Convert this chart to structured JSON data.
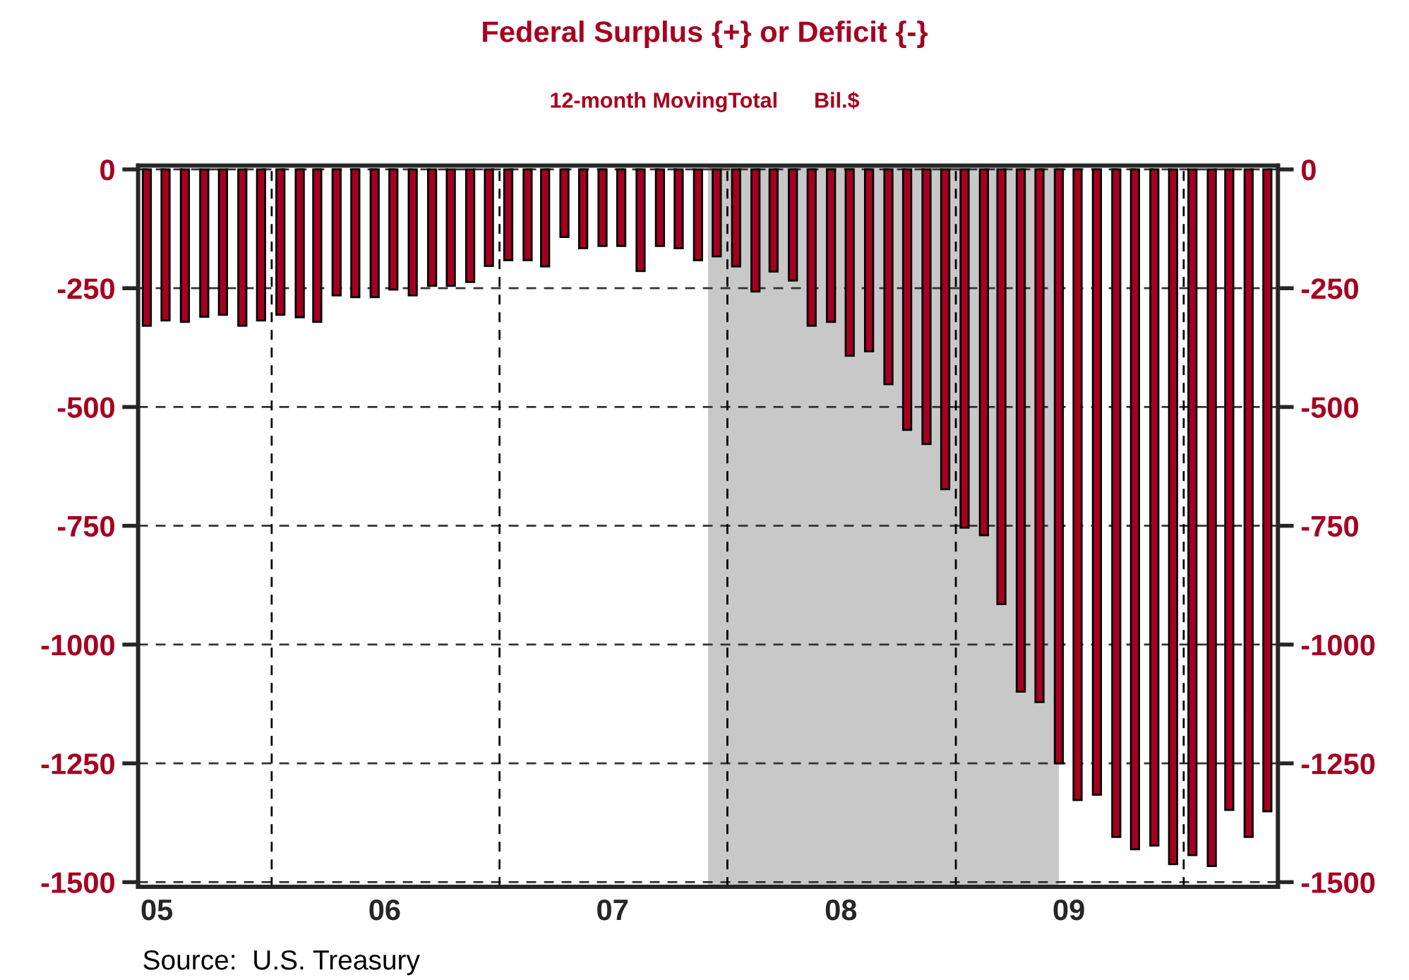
{
  "chart_data": {
    "type": "bar",
    "title": "Federal Surplus {+} or Deficit {-}",
    "subtitle": "12-month MovingTotal      Bil.$",
    "annotations": [
      "Source:  U.S. Treasury"
    ],
    "x": [
      "2005-06-15",
      "2005-07-15",
      "2005-08-15",
      "2005-09-15",
      "2005-10-15",
      "2005-11-15",
      "2005-12-15",
      "2006-01-15",
      "2006-02-15",
      "2006-03-15",
      "2006-04-15",
      "2006-05-15",
      "2006-06-15",
      "2006-07-15",
      "2006-08-15",
      "2006-09-15",
      "2006-10-15",
      "2006-11-15",
      "2006-12-15",
      "2007-01-15",
      "2007-02-15",
      "2007-03-15",
      "2007-04-15",
      "2007-05-15",
      "2007-06-15",
      "2007-07-15",
      "2007-08-15",
      "2007-09-15",
      "2007-10-15",
      "2007-11-15",
      "2007-12-15",
      "2008-01-15",
      "2008-02-15",
      "2008-03-15",
      "2008-04-15",
      "2008-05-15",
      "2008-06-15",
      "2008-07-15",
      "2008-08-15",
      "2008-09-15",
      "2008-10-15",
      "2008-11-15",
      "2008-12-15",
      "2009-01-15",
      "2009-02-15",
      "2009-03-15",
      "2009-04-15",
      "2009-05-15",
      "2009-06-15",
      "2009-07-15",
      "2009-08-15",
      "2009-09-15",
      "2009-10-15",
      "2009-11-15",
      "2009-12-15",
      "2010-01-15",
      "2010-02-15",
      "2010-03-15",
      "2010-04-15",
      "2010-05-15"
    ],
    "values": [
      -329,
      -318,
      -321,
      -310,
      -306,
      -329,
      -318,
      -306,
      -311,
      -321,
      -265,
      -269,
      -269,
      -253,
      -265,
      -245,
      -245,
      -237,
      -203,
      -191,
      -191,
      -204,
      -142,
      -166,
      -161,
      -161,
      -214,
      -161,
      -166,
      -191,
      -183,
      -204,
      -257,
      -215,
      -234,
      -329,
      -321,
      -392,
      -383,
      -452,
      -548,
      -578,
      -673,
      -754,
      -770,
      -915,
      -1099,
      -1121,
      -1250,
      -1327,
      -1316,
      -1405,
      -1431,
      -1423,
      -1462,
      -1443,
      -1466,
      -1348,
      -1405,
      -1351
    ],
    "color": "#a50021",
    "xlim": [
      "2005-06-01",
      "2010-06-01"
    ],
    "xticks": [
      {
        "value": "2005-07-01",
        "label": "05"
      },
      {
        "value": "2006-01-01",
        "label": null
      },
      {
        "value": "2006-07-01",
        "label": "06"
      },
      {
        "value": "2007-01-01",
        "label": null
      },
      {
        "value": "2007-07-01",
        "label": "07"
      },
      {
        "value": "2008-01-01",
        "label": null
      },
      {
        "value": "2008-07-01",
        "label": "08"
      },
      {
        "value": "2009-01-01",
        "label": null
      },
      {
        "value": "2009-07-01",
        "label": "09"
      },
      {
        "value": "2010-01-01",
        "label": null
      }
    ],
    "ylim": [
      -1510,
      8
    ],
    "yticks": [
      0,
      -250,
      -500,
      -750,
      -1000,
      -1250,
      -1500
    ],
    "y2lim": [
      -1510,
      8
    ],
    "y2ticks": [
      0,
      -250,
      -500,
      -750,
      -1000,
      -1250,
      -1500
    ],
    "grid": "y",
    "ref_lines": [
      {
        "axis": "x",
        "value": "2006-01-01",
        "color": "#000000",
        "line_style": "dashed"
      },
      {
        "axis": "x",
        "value": "2007-01-01",
        "color": "#000000",
        "line_style": "dashed"
      },
      {
        "axis": "x",
        "value": "2008-01-01",
        "color": "#000000",
        "line_style": "dashed"
      },
      {
        "axis": "x",
        "value": "2009-01-01",
        "color": "#000000",
        "line_style": "dashed"
      },
      {
        "axis": "x",
        "value": "2010-01-01",
        "color": "#000000",
        "line_style": "dashed"
      }
    ],
    "bands": [
      {
        "axis": "x",
        "from": "2007-12-01",
        "to": "2009-06-15",
        "color": "#c8c8c8"
      }
    ]
  }
}
